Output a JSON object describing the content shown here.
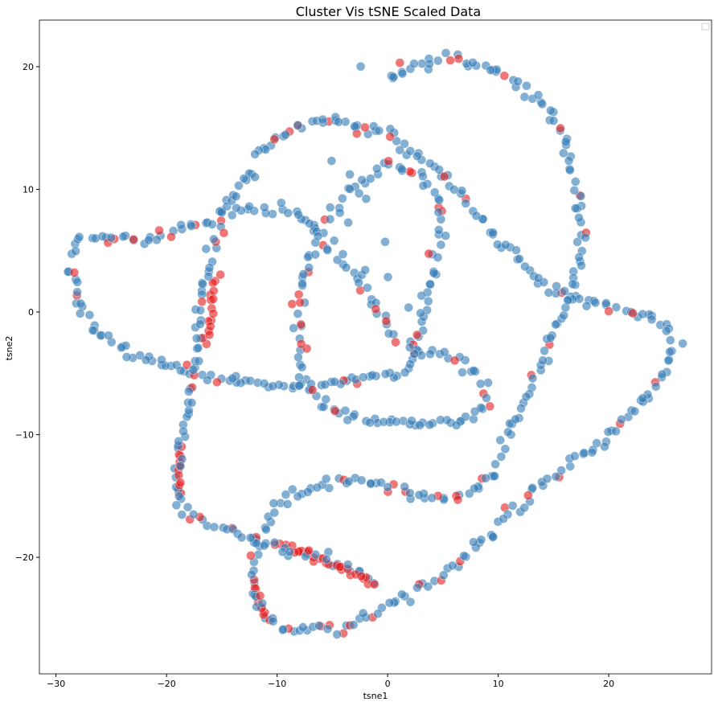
{
  "chart_data": {
    "type": "scatter",
    "title": "Cluster Vis tSNE Scaled Data",
    "xlabel": "tsne1",
    "ylabel": "tsne2",
    "xlim": [
      -31.5,
      29.3
    ],
    "ylim": [
      -29.5,
      23.8
    ],
    "xticks": [
      -30,
      -20,
      -10,
      0,
      10,
      20
    ],
    "yticks": [
      -20,
      -10,
      0,
      10,
      20
    ],
    "grid": false,
    "legend": {
      "placement": "top-right",
      "entries": []
    },
    "colors": {
      "cluster_a": "#e41a1c",
      "cluster_b": "#377eb8"
    },
    "paths": [
      {
        "name": "",
        "cluster": "b",
        "density": 2.2,
        "jitter": 0.25,
        "points": [
          [
            -28.5,
            4.5
          ],
          [
            -28,
            6
          ],
          [
            -26.5,
            6.2
          ],
          [
            -24,
            6
          ],
          [
            -21,
            6
          ],
          [
            -18,
            7
          ],
          [
            -14.5,
            8.2
          ],
          [
            -11.5,
            8.6
          ],
          [
            -9.5,
            8.5
          ],
          [
            -7,
            7
          ],
          [
            -5,
            5
          ],
          [
            -3,
            3
          ],
          [
            -1,
            0
          ],
          [
            0.5,
            -2
          ],
          [
            2,
            -2.5
          ],
          [
            5,
            -3.5
          ],
          [
            8,
            -5
          ],
          [
            9,
            -7.5
          ],
          [
            7,
            -9
          ],
          [
            3,
            -9
          ],
          [
            0,
            -8.8
          ],
          [
            -4,
            -8.5
          ],
          [
            -6,
            -7.5
          ],
          [
            -7.5,
            -5.5
          ],
          [
            -8,
            -2
          ],
          [
            -8,
            1
          ],
          [
            -7.3,
            4
          ],
          [
            -6,
            7
          ],
          [
            -3,
            10
          ],
          [
            0,
            12.2
          ],
          [
            2.5,
            11.5
          ],
          [
            4.5,
            9.5
          ],
          [
            4.8,
            6
          ],
          [
            4,
            3
          ],
          [
            3,
            -1
          ],
          [
            2,
            -4.5
          ],
          [
            0,
            -5
          ],
          [
            -3,
            -5.5
          ],
          [
            -6,
            -6
          ],
          [
            -9,
            -6.2
          ],
          [
            -13,
            -5.8
          ],
          [
            -16,
            -5.3
          ],
          [
            -20,
            -4.5
          ],
          [
            -23,
            -3.5
          ],
          [
            -26,
            -1.8
          ],
          [
            -28,
            0.5
          ],
          [
            -28.8,
            3.5
          ],
          [
            -28.5,
            4.5
          ]
        ]
      },
      {
        "name": "",
        "cluster": "b",
        "density": 2.2,
        "jitter": 0.25,
        "points": [
          [
            -4.8,
            15.6
          ],
          [
            -8,
            15.3
          ],
          [
            -10.5,
            14
          ],
          [
            -13,
            11
          ],
          [
            -15,
            8
          ],
          [
            -16.5,
            3
          ],
          [
            -17,
            -1
          ],
          [
            -17.5,
            -5
          ],
          [
            -18,
            -8
          ],
          [
            -19,
            -11
          ],
          [
            -19,
            -14
          ],
          [
            -18.5,
            -16
          ],
          [
            -17,
            -17
          ],
          [
            -14,
            -17.8
          ],
          [
            -11,
            -18.8
          ],
          [
            -8,
            -19.5
          ],
          [
            -5,
            -20.5
          ],
          [
            -2,
            -21.5
          ],
          [
            -1,
            -22.3
          ]
        ]
      },
      {
        "name": "",
        "cluster": "b",
        "density": 2.2,
        "jitter": 0.25,
        "points": [
          [
            -4.8,
            15.6
          ],
          [
            -2,
            15.2
          ],
          [
            0,
            14.5
          ],
          [
            2,
            13
          ],
          [
            4,
            12
          ],
          [
            6,
            10
          ],
          [
            9,
            7
          ],
          [
            11,
            5
          ],
          [
            14,
            2
          ],
          [
            17,
            1
          ],
          [
            20,
            0.4
          ],
          [
            23,
            -0.3
          ],
          [
            25,
            -0.8
          ],
          [
            26,
            -2.5
          ],
          [
            25,
            -5
          ],
          [
            23,
            -7.5
          ],
          [
            20,
            -10
          ],
          [
            17,
            -12
          ],
          [
            13,
            -14.5
          ],
          [
            10,
            -17
          ],
          [
            8,
            -19
          ],
          [
            6,
            -21
          ],
          [
            3,
            -22.5
          ],
          [
            0,
            -24
          ],
          [
            -3,
            -25.5
          ],
          [
            -6,
            -26
          ],
          [
            -9,
            -25.8
          ],
          [
            -11,
            -25
          ],
          [
            -12,
            -23
          ],
          [
            -12.3,
            -21
          ],
          [
            -12,
            -19
          ],
          [
            -11,
            -17
          ],
          [
            -9,
            -15
          ],
          [
            -6,
            -14
          ],
          [
            -4,
            -13.8
          ],
          [
            -1,
            -14
          ],
          [
            1,
            -14.5
          ],
          [
            4,
            -15.3
          ],
          [
            6,
            -15.2
          ],
          [
            8,
            -14.5
          ],
          [
            9.5,
            -13
          ],
          [
            11,
            -10
          ],
          [
            12.5,
            -7
          ],
          [
            14,
            -4
          ],
          [
            15,
            -1.5
          ],
          [
            16,
            0
          ],
          [
            17,
            2
          ],
          [
            17.5,
            5
          ],
          [
            17.3,
            9
          ],
          [
            16.5,
            13
          ],
          [
            15,
            16
          ],
          [
            12,
            18.5
          ],
          [
            9,
            20
          ],
          [
            5,
            20.5
          ],
          [
            2,
            20
          ],
          [
            0,
            19
          ]
        ]
      },
      {
        "name": "",
        "cluster": "b",
        "density": 0.6,
        "jitter": 0.9,
        "points": [
          [
            -3.5,
            14
          ],
          [
            -3,
            11
          ],
          [
            -2.5,
            8
          ],
          [
            -1.5,
            5
          ],
          [
            -0.5,
            2
          ],
          [
            0.5,
            0
          ],
          [
            1.5,
            -1.5
          ]
        ]
      },
      {
        "name": "",
        "cluster": "b",
        "density": 0.6,
        "jitter": 0.9,
        "points": [
          [
            -2,
            16
          ],
          [
            -1,
            18
          ],
          [
            0,
            19.5
          ],
          [
            3,
            20.3
          ]
        ]
      }
    ],
    "red_segments": [
      {
        "points": [
          [
            -10,
            -18.9
          ],
          [
            -7,
            -19.8
          ],
          [
            -4,
            -21
          ],
          [
            -1,
            -22.3
          ]
        ]
      },
      {
        "points": [
          [
            -18.7,
            -11
          ],
          [
            -18.9,
            -13.5
          ],
          [
            -18.5,
            -15.5
          ]
        ]
      },
      {
        "points": [
          [
            -12,
            -22
          ],
          [
            -11.5,
            -24
          ],
          [
            -10.5,
            -25.2
          ]
        ]
      },
      {
        "points": [
          [
            -15.5,
            3
          ],
          [
            -16,
            0
          ],
          [
            -16.3,
            -3
          ]
        ]
      }
    ]
  }
}
